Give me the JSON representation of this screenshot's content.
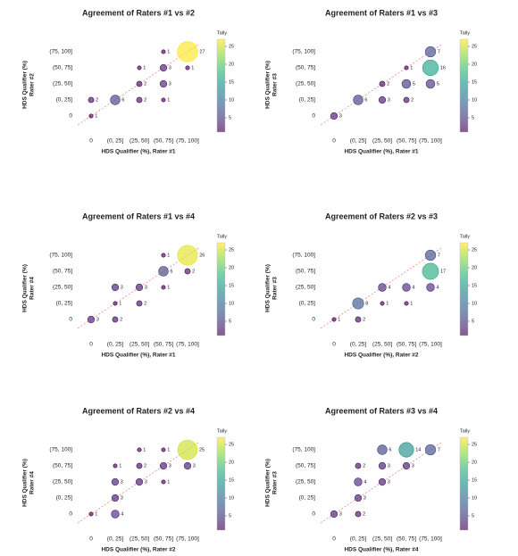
{
  "chart_data": [
    {
      "type": "bubble",
      "title": "Agreement of Raters #1 vs #2",
      "xlabel": "HDS Qualifier (%), Rater #1",
      "ylabel": [
        "HDS Qualifier (%)",
        "Rater #2"
      ],
      "categories": [
        "0",
        "(0, 25]",
        "(25, 50]",
        "(50, 75]",
        "(75, 100]"
      ],
      "x": [
        "0",
        "0",
        "(0, 25]",
        "(25, 50]",
        "(50, 75]",
        "(25, 50]",
        "(50, 75]",
        "(25, 50]",
        "(50, 75]",
        "(75, 100]",
        "(50, 75]",
        "(75, 100]"
      ],
      "y": [
        "0",
        "(0, 25]",
        "(0, 25]",
        "(0, 25]",
        "(0, 25]",
        "(25, 50]",
        "(25, 50]",
        "(50, 75]",
        "(50, 75]",
        "(50, 75]",
        "(75, 100]",
        "(75, 100]"
      ],
      "values": [
        1,
        2,
        6,
        2,
        1,
        2,
        3,
        1,
        3,
        1,
        1,
        27
      ],
      "colormap": "viridis",
      "clim": [
        1,
        27
      ],
      "cticks": [
        5,
        10,
        15,
        20,
        25
      ],
      "clabel": "Tally"
    },
    {
      "type": "bubble",
      "title": "Agreement of Raters #1 vs #3",
      "xlabel": "HDS Qualifier (%), Rater #1",
      "ylabel": [
        "HDS Qualifier (%)",
        "Rater #3"
      ],
      "categories": [
        "0",
        "(0, 25]",
        "(25, 50]",
        "(50, 75]",
        "(75, 100]"
      ],
      "x": [
        "0",
        "(0, 25]",
        "(25, 50]",
        "(50, 75]",
        "(25, 50]",
        "(50, 75]",
        "(75, 100]",
        "(50, 75]",
        "(75, 100]",
        "(75, 100]"
      ],
      "y": [
        "0",
        "(0, 25]",
        "(0, 25]",
        "(0, 25]",
        "(25, 50]",
        "(25, 50]",
        "(25, 50]",
        "(50, 75]",
        "(50, 75]",
        "(75, 100]"
      ],
      "values": [
        3,
        6,
        3,
        2,
        2,
        5,
        5,
        1,
        16,
        7
      ],
      "colormap": "viridis",
      "clim": [
        1,
        27
      ],
      "cticks": [
        5,
        10,
        15,
        20,
        25
      ],
      "clabel": "Tally"
    },
    {
      "type": "bubble",
      "title": "Agreement of Raters #1 vs #4",
      "xlabel": "HDS Qualifier (%), Rater #1",
      "ylabel": [
        "HDS Qualifier (%)",
        "Rater #4"
      ],
      "categories": [
        "0",
        "(0, 25]",
        "(25, 50]",
        "(50, 75]",
        "(75, 100]"
      ],
      "x": [
        "0",
        "(0, 25]",
        "(0, 25]",
        "(25, 50]",
        "(0, 25]",
        "(25, 50]",
        "(50, 75]",
        "(50, 75]",
        "(75, 100]",
        "(50, 75]",
        "(75, 100]"
      ],
      "y": [
        "0",
        "0",
        "(0, 25]",
        "(0, 25]",
        "(25, 50]",
        "(25, 50]",
        "(25, 50]",
        "(50, 75]",
        "(50, 75]",
        "(75, 100]",
        "(75, 100]"
      ],
      "values": [
        3,
        2,
        1,
        2,
        3,
        3,
        1,
        6,
        2,
        1,
        26
      ],
      "colormap": "viridis",
      "clim": [
        1,
        27
      ],
      "cticks": [
        5,
        10,
        15,
        20,
        25
      ],
      "clabel": "Tally"
    },
    {
      "type": "bubble",
      "title": "Agreement of Raters #2 vs #3",
      "xlabel": "HDS Qualifier (%), Rater #2",
      "ylabel": [
        "HDS Qualifier (%)",
        "Rater #3"
      ],
      "categories": [
        "0",
        "(0, 25]",
        "(25, 50]",
        "(50, 75]",
        "(75, 100]"
      ],
      "x": [
        "0",
        "(0, 25]",
        "(0, 25]",
        "(25, 50]",
        "(50, 75]",
        "(25, 50]",
        "(50, 75]",
        "(75, 100]",
        "(75, 100]",
        "(75, 100]"
      ],
      "y": [
        "0",
        "0",
        "(0, 25]",
        "(0, 25]",
        "(0, 25]",
        "(25, 50]",
        "(25, 50]",
        "(25, 50]",
        "(50, 75]",
        "(75, 100]"
      ],
      "values": [
        1,
        2,
        8,
        1,
        1,
        4,
        4,
        4,
        17,
        7
      ],
      "colormap": "viridis",
      "clim": [
        1,
        27
      ],
      "cticks": [
        5,
        10,
        15,
        20,
        25
      ],
      "clabel": "Tally"
    },
    {
      "type": "bubble",
      "title": "Agreement of Raters #2 vs #4",
      "xlabel": "HDS Qualifier (%), Rater #2",
      "ylabel": [
        "HDS Qualifier (%)",
        "Rater #4"
      ],
      "categories": [
        "0",
        "(0, 25]",
        "(25, 50]",
        "(50, 75]",
        "(75, 100]"
      ],
      "x": [
        "0",
        "(0, 25]",
        "(0, 25]",
        "(0, 25]",
        "(25, 50]",
        "(50, 75]",
        "(0, 25]",
        "(25, 50]",
        "(50, 75]",
        "(75, 100]",
        "(25, 50]",
        "(50, 75]",
        "(75, 100]"
      ],
      "y": [
        "0",
        "0",
        "(0, 25]",
        "(25, 50]",
        "(25, 50]",
        "(25, 50]",
        "(50, 75]",
        "(50, 75]",
        "(50, 75]",
        "(50, 75]",
        "(75, 100]",
        "(75, 100]",
        "(75, 100]"
      ],
      "values": [
        1,
        4,
        3,
        3,
        3,
        1,
        1,
        2,
        3,
        3,
        1,
        1,
        25
      ],
      "colormap": "viridis",
      "clim": [
        1,
        27
      ],
      "cticks": [
        5,
        10,
        15,
        20,
        25
      ],
      "clabel": "Tally"
    },
    {
      "type": "bubble",
      "title": "Agreement of Raters #3 vs #4",
      "xlabel": "HDS Qualifier (%), Rater #4",
      "ylabel": [
        "HDS Qualifier (%)",
        "Rater #3"
      ],
      "categories": [
        "0",
        "(0, 25]",
        "(25, 50]",
        "(50, 75]",
        "(75, 100]"
      ],
      "x": [
        "0",
        "(0, 25]",
        "(0, 25]",
        "(0, 25]",
        "(25, 50]",
        "(0, 25]",
        "(25, 50]",
        "(50, 75]",
        "(25, 50]",
        "(50, 75]",
        "(75, 100]"
      ],
      "y": [
        "0",
        "0",
        "(0, 25]",
        "(25, 50]",
        "(25, 50]",
        "(50, 75]",
        "(50, 75]",
        "(50, 75]",
        "(75, 100]",
        "(75, 100]",
        "(75, 100]"
      ],
      "values": [
        3,
        2,
        3,
        4,
        3,
        2,
        3,
        3,
        6,
        14,
        7
      ],
      "colormap": "viridis",
      "clim": [
        1,
        27
      ],
      "cticks": [
        5,
        10,
        15,
        20,
        25
      ],
      "clabel": "Tally"
    }
  ]
}
